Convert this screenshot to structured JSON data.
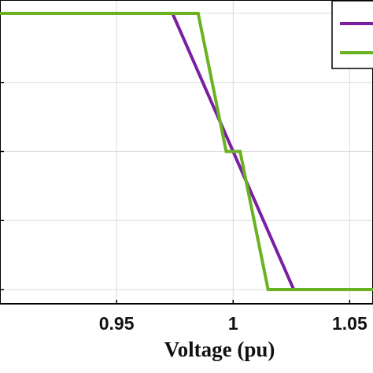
{
  "chart_data": {
    "type": "line",
    "title": "",
    "xlabel": "Voltage (pu)",
    "ylabel": "",
    "xlim": [
      0.9,
      1.06
    ],
    "ylim": [
      -1,
      1
    ],
    "xticks": [
      0.95,
      1,
      1.05
    ],
    "xtick_labels": [
      "0.95",
      "1",
      "1.05"
    ],
    "yticks": [
      -1,
      -0.5,
      0,
      0.5,
      1
    ],
    "grid": true,
    "legend": "top-right",
    "series": [
      {
        "color": "#7B1FA2",
        "x": [
          0.9,
          0.974,
          1.026,
          1.06
        ],
        "y": [
          1,
          1,
          -1,
          -1
        ]
      },
      {
        "color": "#6BB223",
        "x": [
          0.9,
          0.985,
          0.997,
          1.003,
          1.015,
          1.06
        ],
        "y": [
          1,
          1,
          0,
          0,
          -1,
          -1
        ]
      }
    ]
  }
}
